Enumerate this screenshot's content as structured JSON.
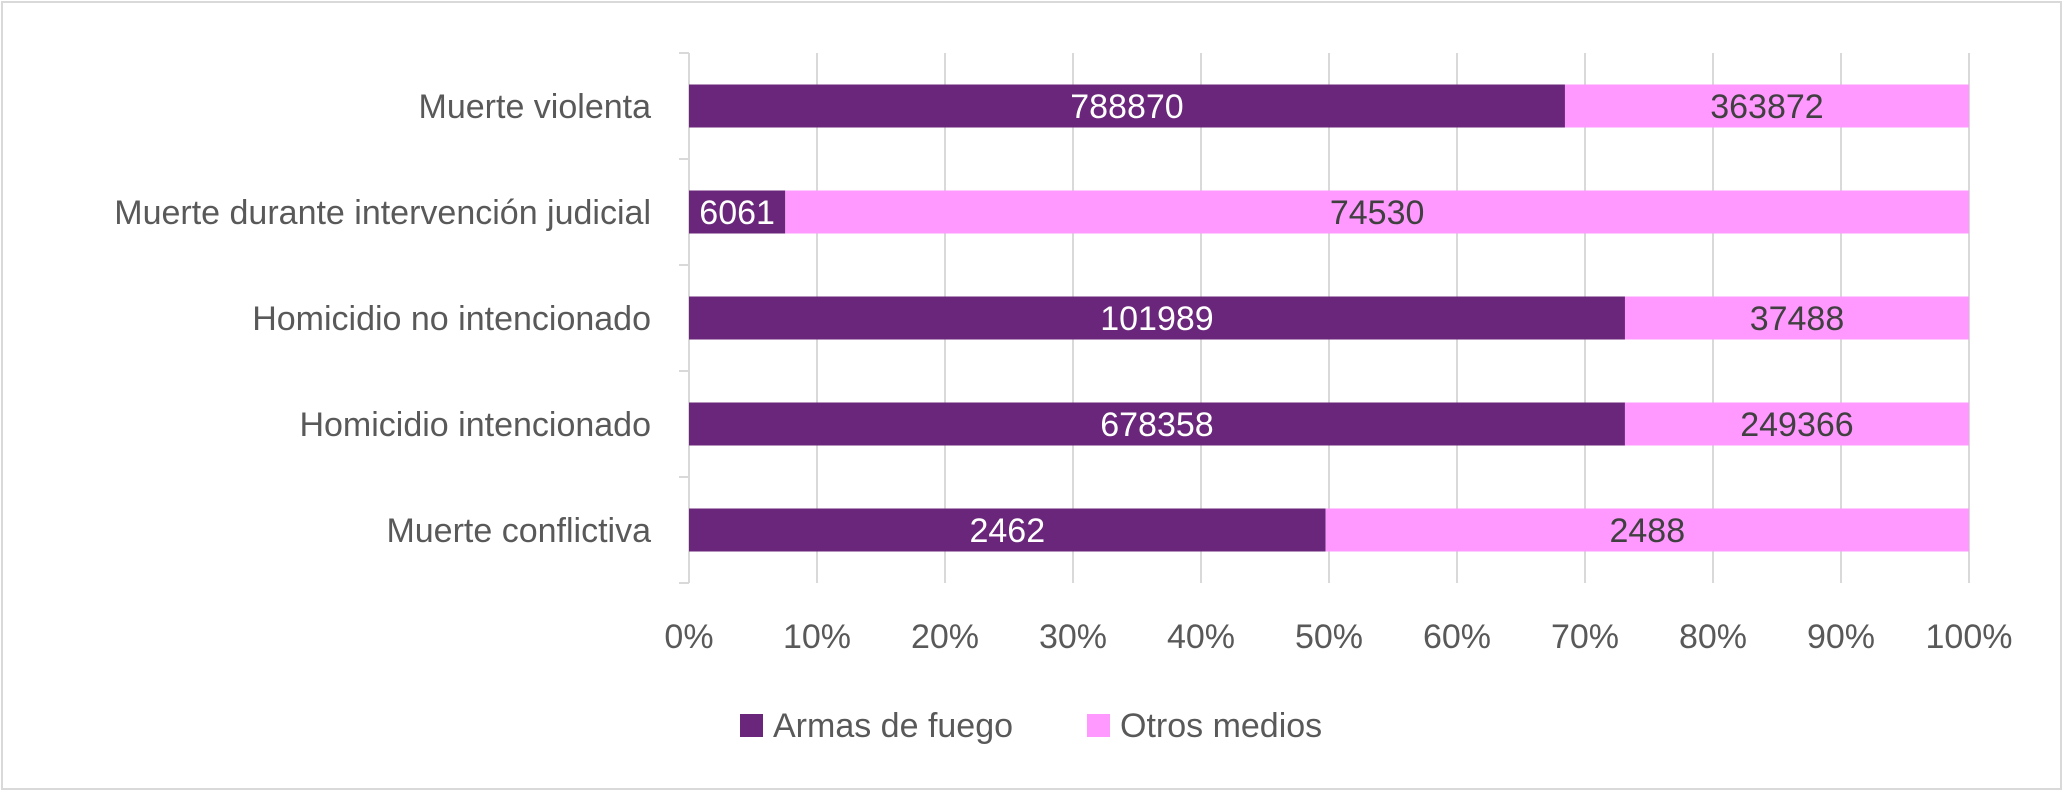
{
  "chart_data": {
    "type": "bar",
    "orientation": "horizontal",
    "stacked": "percent",
    "categories": [
      "Muerte violenta",
      "Muerte durante intervención judicial",
      "Homicidio no intencionado",
      "Homicidio intencionado",
      "Muerte conflictiva"
    ],
    "series": [
      {
        "name": "Armas de fuego",
        "color": "#6a267a",
        "label_color": "#ffffff",
        "values": [
          788870,
          6061,
          101989,
          678358,
          2462
        ]
      },
      {
        "name": "Otros medios",
        "color": "#ff99ff",
        "label_color": "#404040",
        "values": [
          363872,
          74530,
          37488,
          249366,
          2488
        ]
      }
    ],
    "xticks": [
      "0%",
      "10%",
      "20%",
      "30%",
      "40%",
      "50%",
      "60%",
      "70%",
      "80%",
      "90%",
      "100%"
    ],
    "xlim": [
      0,
      100
    ],
    "grid": true,
    "legend_position": "bottom",
    "title": "",
    "xlabel": "",
    "ylabel": ""
  }
}
